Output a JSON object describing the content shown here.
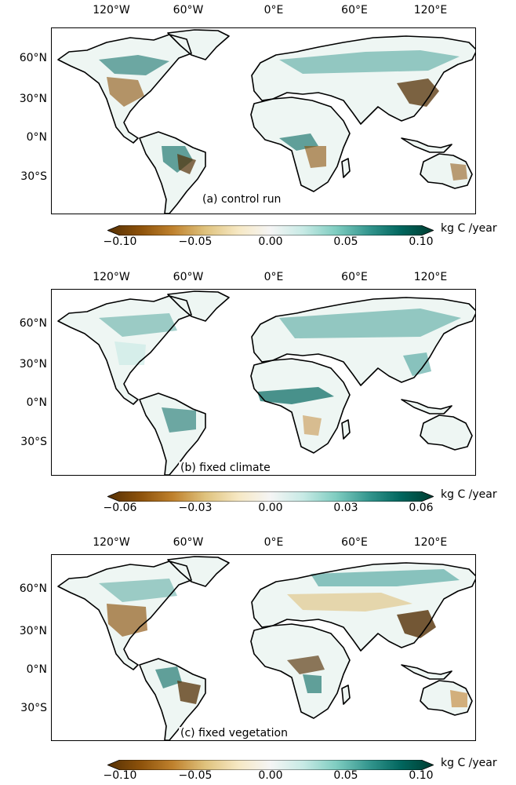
{
  "lon_ticks": [
    "120°W",
    "60°W",
    "0°E",
    "60°E",
    "120°E"
  ],
  "lat_ticks": [
    "60°N",
    "30°N",
    "0°N",
    "30°S"
  ],
  "colormap": {
    "name": "BrBG",
    "stops": [
      "#543005",
      "#8c510a",
      "#bf812d",
      "#dfc27d",
      "#f6e8c3",
      "#f5f5f5",
      "#c7eae5",
      "#80cdc1",
      "#35978f",
      "#01665e",
      "#003c30"
    ]
  },
  "panels": [
    {
      "label": "(a) control run",
      "colorbar": {
        "ticks": [
          "−0.10",
          "−0.05",
          "0.00",
          "0.05",
          "0.10"
        ],
        "unit": "kg C /year",
        "min": -0.1,
        "max": 0.1
      }
    },
    {
      "label": "(b) fixed climate",
      "colorbar": {
        "ticks": [
          "−0.06",
          "−0.03",
          "0.00",
          "0.03",
          "0.06"
        ],
        "unit": "kg C /year",
        "min": -0.06,
        "max": 0.06
      }
    },
    {
      "label": "(c) fixed vegetation",
      "colorbar": {
        "ticks": [
          "−0.10",
          "−0.05",
          "0.00",
          "0.05",
          "0.10"
        ],
        "unit": "kg C /year",
        "min": -0.1,
        "max": 0.1
      }
    }
  ]
}
